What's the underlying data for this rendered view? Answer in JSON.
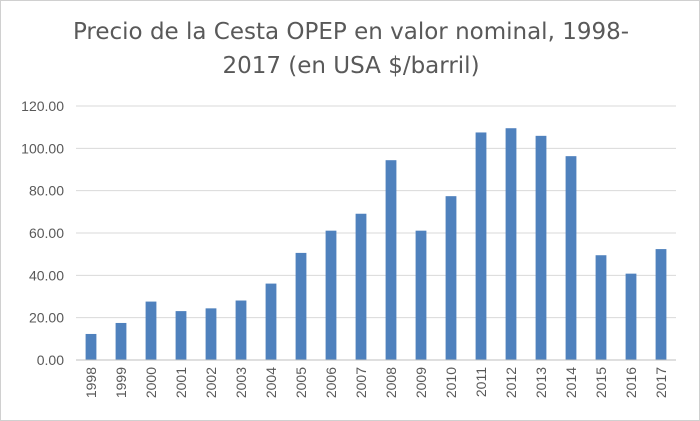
{
  "chart_data": {
    "type": "bar",
    "title": "Precio de la Cesta OPEP en valor nominal, 1998-2017 (en USA $/barril)",
    "xlabel": "",
    "ylabel": "",
    "ylim": [
      0,
      120
    ],
    "y_ticks": [
      "0.00",
      "20.00",
      "40.00",
      "60.00",
      "80.00",
      "100.00",
      "120.00"
    ],
    "grid": true,
    "legend": "none",
    "bar_color": "#4f81bd",
    "grid_color": "#d9d9d9",
    "categories": [
      "1998",
      "1999",
      "2000",
      "2001",
      "2002",
      "2003",
      "2004",
      "2005",
      "2006",
      "2007",
      "2008",
      "2009",
      "2010",
      "2011",
      "2012",
      "2013",
      "2014",
      "2015",
      "2016",
      "2017"
    ],
    "values": [
      12.3,
      17.5,
      27.6,
      23.1,
      24.4,
      28.1,
      36.1,
      50.6,
      61.1,
      69.1,
      94.4,
      61.1,
      77.4,
      107.5,
      109.5,
      105.9,
      96.3,
      49.5,
      40.8,
      52.4
    ]
  }
}
